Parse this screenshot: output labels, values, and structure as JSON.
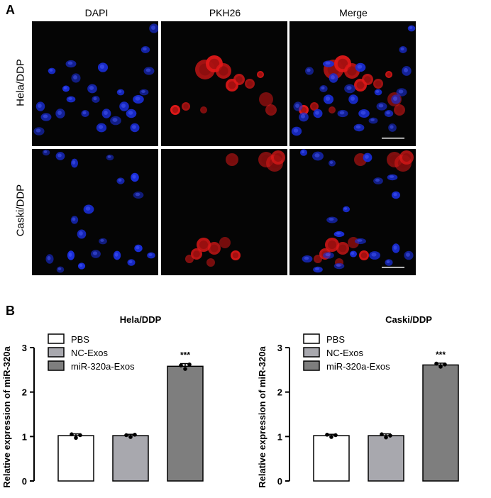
{
  "panel_a": {
    "letter": "A",
    "columns": [
      "DAPI",
      "PKH26",
      "Merge"
    ],
    "rows": [
      "Hela/DDP",
      "Caski/DDP"
    ]
  },
  "panel_b": {
    "letter": "B"
  },
  "colors": {
    "dapi": "#1a2ed8",
    "pkh26": "#e01818",
    "pbs": "#ffffff",
    "nc": "#a8a8ae",
    "mir": "#7e7e7e"
  },
  "chart_data": [
    {
      "type": "bar",
      "title": "Hela/DDP",
      "ylabel": "Relative expression of miR-320a",
      "ylim": [
        0,
        3
      ],
      "yticks": [
        0,
        1,
        2,
        3
      ],
      "categories": [
        "PBS",
        "NC-Exos",
        "miR-320a-Exos"
      ],
      "values": [
        1.02,
        1.02,
        2.58
      ],
      "errors": [
        0.04,
        0.03,
        0.06
      ],
      "points": [
        [
          1.05,
          0.97,
          1.03
        ],
        [
          1.03,
          0.99,
          1.04
        ],
        [
          2.6,
          2.52,
          2.62
        ]
      ],
      "significance": [
        "",
        "",
        "***"
      ],
      "legend": [
        "PBS",
        "NC-Exos",
        "miR-320a-Exos"
      ]
    },
    {
      "type": "bar",
      "title": "Caski/DDP",
      "ylabel": "Relative expression of miR-320a",
      "ylim": [
        0,
        3
      ],
      "yticks": [
        0,
        1,
        2,
        3
      ],
      "categories": [
        "PBS",
        "NC-Exos",
        "miR-320a-Exos"
      ],
      "values": [
        1.02,
        1.02,
        2.61
      ],
      "errors": [
        0.03,
        0.04,
        0.04
      ],
      "points": [
        [
          1.04,
          0.99,
          1.03
        ],
        [
          1.05,
          0.98,
          1.02
        ],
        [
          2.64,
          2.57,
          2.62
        ]
      ],
      "significance": [
        "",
        "",
        "***"
      ],
      "legend": [
        "PBS",
        "NC-Exos",
        "miR-320a-Exos"
      ]
    }
  ]
}
